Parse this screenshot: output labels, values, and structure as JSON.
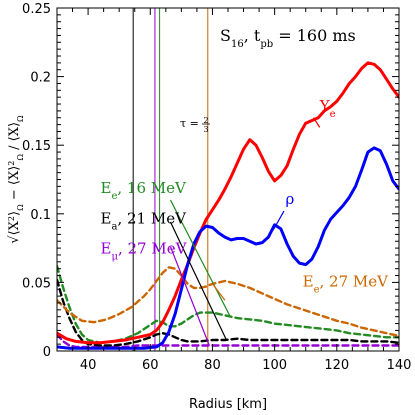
{
  "chart_data": {
    "type": "line",
    "title": "S16, tpb = 160 ms",
    "title_parts": {
      "model": "S",
      "model_sub": "16",
      "time_var": "t",
      "time_sub": "pb",
      "time_value": " = 160 ms"
    },
    "xlabel": "Radius [km]",
    "ylabel_text": "√⟨X²⟩α − ⟨X⟩α² / ⟨X⟩α",
    "ylabel_parts": {
      "n1": "X",
      "e1": "2",
      "s1": "Ω",
      "n2": "X",
      "e2": "2",
      "s2": "Ω",
      "n3": "X",
      "s3": "Ω"
    },
    "xlim": [
      30,
      140
    ],
    "ylim": [
      0,
      0.25
    ],
    "xticks": [
      40,
      60,
      80,
      100,
      120,
      140
    ],
    "xtick_labels": [
      "40",
      "60",
      "80",
      "100",
      "120",
      "140"
    ],
    "yticks": [
      0,
      0.05,
      0.1,
      0.15,
      0.2,
      0.25
    ],
    "ytick_labels": [
      "0",
      "0.05",
      "0.1",
      "0.15",
      "0.2",
      "0.25"
    ],
    "grid": false,
    "legend": "none",
    "series": [
      {
        "name": "Ye",
        "label_main": "Y",
        "label_sub": "e",
        "color": "#ff0000",
        "style": "solid",
        "x": [
          30,
          33,
          36,
          40,
          44,
          48,
          52,
          56,
          60,
          62,
          64,
          66,
          68,
          70,
          72,
          74,
          76,
          78,
          80,
          82,
          84,
          86,
          88,
          90,
          92,
          94,
          96,
          98,
          100,
          102,
          104,
          106,
          108,
          110,
          112,
          114,
          116,
          118,
          120,
          122,
          124,
          126,
          128,
          130,
          132,
          134,
          136,
          138,
          140
        ],
        "y": [
          0.013,
          0.009,
          0.007,
          0.006,
          0.006,
          0.007,
          0.008,
          0.01,
          0.012,
          0.015,
          0.021,
          0.03,
          0.04,
          0.052,
          0.063,
          0.075,
          0.086,
          0.096,
          0.103,
          0.11,
          0.118,
          0.127,
          0.137,
          0.147,
          0.154,
          0.15,
          0.141,
          0.131,
          0.124,
          0.128,
          0.135,
          0.147,
          0.158,
          0.166,
          0.168,
          0.17,
          0.175,
          0.178,
          0.182,
          0.188,
          0.195,
          0.2,
          0.206,
          0.21,
          0.209,
          0.205,
          0.198,
          0.191,
          0.185
        ]
      },
      {
        "name": "ρ",
        "label_main": "ρ",
        "color": "#0000ff",
        "style": "solid",
        "x": [
          30,
          34,
          38,
          42,
          46,
          50,
          54,
          58,
          62,
          64,
          66,
          68,
          70,
          72,
          74,
          76,
          78,
          80,
          82,
          84,
          86,
          88,
          90,
          92,
          94,
          96,
          98,
          100,
          102,
          104,
          106,
          108,
          110,
          112,
          114,
          116,
          118,
          120,
          122,
          124,
          126,
          128,
          130,
          132,
          134,
          136,
          138,
          140
        ],
        "y": [
          0.003,
          0.002,
          0.002,
          0.002,
          0.002,
          0.002,
          0.002,
          0.002,
          0.003,
          0.006,
          0.014,
          0.027,
          0.045,
          0.063,
          0.078,
          0.087,
          0.091,
          0.09,
          0.086,
          0.083,
          0.081,
          0.082,
          0.082,
          0.08,
          0.078,
          0.079,
          0.083,
          0.092,
          0.089,
          0.078,
          0.069,
          0.064,
          0.063,
          0.067,
          0.076,
          0.088,
          0.096,
          0.101,
          0.106,
          0.112,
          0.12,
          0.132,
          0.145,
          0.148,
          0.146,
          0.136,
          0.124,
          0.118
        ]
      },
      {
        "name": "Eμ, 27 MeV",
        "label_main": "E",
        "label_sub": "μ",
        "label_value": ", 27 MeV",
        "color": "#9400d3",
        "style": "dashed",
        "x": [
          30,
          32,
          34,
          36,
          40,
          44,
          48,
          52,
          56,
          60,
          64,
          68,
          72,
          76,
          80,
          84,
          88,
          92,
          96,
          100,
          104,
          108,
          112,
          116,
          120,
          124,
          128,
          132,
          136,
          140
        ],
        "y": [
          0.012,
          0.007,
          0.004,
          0.003,
          0.003,
          0.003,
          0.003,
          0.003,
          0.004,
          0.004,
          0.004,
          0.004,
          0.004,
          0.004,
          0.004,
          0.004,
          0.004,
          0.004,
          0.004,
          0.004,
          0.004,
          0.004,
          0.004,
          0.004,
          0.004,
          0.004,
          0.004,
          0.004,
          0.004,
          0.004
        ]
      },
      {
        "name": "Ea, 21 MeV",
        "label_main": "E",
        "label_sub": "a",
        "label_value": ", 21 MeV",
        "color": "#000000",
        "style": "dashed",
        "x": [
          30,
          32,
          34,
          36,
          38,
          40,
          44,
          48,
          52,
          56,
          60,
          62,
          64,
          66,
          68,
          70,
          72,
          76,
          80,
          84,
          88,
          92,
          96,
          100,
          104,
          108,
          112,
          116,
          120,
          124,
          128,
          132,
          136,
          140
        ],
        "y": [
          0.052,
          0.036,
          0.024,
          0.014,
          0.008,
          0.005,
          0.004,
          0.004,
          0.005,
          0.007,
          0.01,
          0.012,
          0.013,
          0.012,
          0.01,
          0.008,
          0.007,
          0.007,
          0.008,
          0.008,
          0.009,
          0.008,
          0.008,
          0.008,
          0.008,
          0.008,
          0.008,
          0.008,
          0.008,
          0.008,
          0.007,
          0.007,
          0.007,
          0.006
        ]
      },
      {
        "name": "Ee, 16 MeV",
        "label_main": "E",
        "label_sub": "e",
        "label_value": ", 16 MeV",
        "color": "#228b22",
        "style": "dashed",
        "x": [
          30,
          32,
          34,
          36,
          38,
          40,
          44,
          48,
          52,
          56,
          60,
          62,
          64,
          66,
          68,
          70,
          72,
          74,
          76,
          78,
          80,
          84,
          88,
          92,
          96,
          100,
          104,
          108,
          112,
          116,
          120,
          124,
          128,
          132,
          136,
          140
        ],
        "y": [
          0.062,
          0.046,
          0.032,
          0.02,
          0.012,
          0.008,
          0.006,
          0.007,
          0.009,
          0.013,
          0.019,
          0.022,
          0.021,
          0.018,
          0.018,
          0.02,
          0.023,
          0.026,
          0.028,
          0.028,
          0.028,
          0.026,
          0.024,
          0.023,
          0.022,
          0.02,
          0.019,
          0.018,
          0.017,
          0.016,
          0.015,
          0.013,
          0.012,
          0.011,
          0.01,
          0.01
        ]
      },
      {
        "name": "Ee, 27 MeV",
        "label_main": "E",
        "label_sub": "e",
        "label_value": ", 27 MeV",
        "color": "#cc6600",
        "style": "dashed",
        "x": [
          30,
          34,
          38,
          42,
          46,
          50,
          54,
          58,
          60,
          62,
          64,
          66,
          68,
          70,
          72,
          74,
          76,
          78,
          80,
          84,
          88,
          92,
          96,
          100,
          104,
          108,
          112,
          116,
          120,
          124,
          128,
          132,
          136,
          140
        ],
        "y": [
          0.037,
          0.028,
          0.022,
          0.021,
          0.023,
          0.027,
          0.032,
          0.04,
          0.045,
          0.051,
          0.057,
          0.061,
          0.06,
          0.055,
          0.049,
          0.046,
          0.046,
          0.047,
          0.049,
          0.051,
          0.049,
          0.046,
          0.042,
          0.038,
          0.034,
          0.031,
          0.028,
          0.025,
          0.022,
          0.02,
          0.017,
          0.015,
          0.013,
          0.011
        ]
      }
    ],
    "vertical_lines": [
      {
        "x": 54.5,
        "color": "#000000"
      },
      {
        "x": 61.5,
        "color": "#9400d3"
      },
      {
        "x": 63.0,
        "color": "#228b22"
      },
      {
        "x": 78.5,
        "color": "#cc6600"
      }
    ],
    "tau_label": {
      "prefix": "τ = ",
      "numerator": "2",
      "denominator": "3"
    },
    "pointer_lines": [
      {
        "color": "#228b22",
        "from": [
          66.5,
          0.11
        ],
        "to": [
          85.5,
          0.026
        ]
      },
      {
        "color": "#000000",
        "from": [
          66.5,
          0.094
        ],
        "to": [
          84.5,
          0.008
        ]
      },
      {
        "color": "#9400d3",
        "from": [
          66.5,
          0.076
        ],
        "to": [
          79.0,
          0.004
        ]
      },
      {
        "color": "#cc6600",
        "from": [
          84.0,
          0.037
        ],
        "to": [
          80.0,
          0.049
        ]
      },
      {
        "color": "#0000ff",
        "from": [
          103.0,
          0.102
        ],
        "to": [
          99.5,
          0.088
        ]
      },
      {
        "color": "#ff0000",
        "from": [
          114.5,
          0.163
        ],
        "to": [
          112.5,
          0.17
        ]
      }
    ],
    "annotations": [
      {
        "series": 0,
        "x": 114.5,
        "y": 0.175,
        "color": "#ff0000"
      },
      {
        "series": 1,
        "x": 103.5,
        "y": 0.107,
        "color": "#0000ff"
      },
      {
        "series": 4,
        "x": 44.0,
        "y": 0.115,
        "color": "#228b22"
      },
      {
        "series": 3,
        "x": 44.0,
        "y": 0.093,
        "color": "#000000"
      },
      {
        "series": 2,
        "x": 44.0,
        "y": 0.071,
        "color": "#9400d3"
      },
      {
        "series": 5,
        "x": 109.0,
        "y": 0.047,
        "color": "#cc6600"
      }
    ]
  }
}
